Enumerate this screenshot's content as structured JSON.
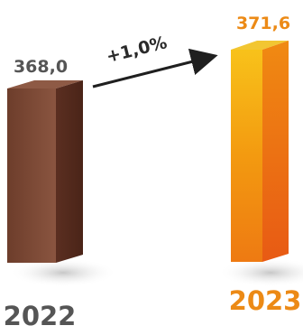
{
  "chart_data": {
    "type": "bar",
    "categories": [
      "2022",
      "2023"
    ],
    "values": [
      368.0,
      371.6
    ],
    "value_labels": [
      "368,0",
      "371,6"
    ],
    "change_label": "+1,0%",
    "title": "",
    "xlabel": "",
    "ylabel": "",
    "legend": "none",
    "grid": false,
    "style": "3d-box",
    "colors": {
      "bar_2022_front": "#7a4632",
      "bar_2022_side": "#5b2f21",
      "bar_2022_top": "#8e5a45",
      "bar_2023_front": "#f39a10",
      "bar_2023_side": "#e06a14",
      "bar_2023_top": "#f2c632",
      "label_2022": "#555555",
      "label_2023": "#ec8a16",
      "arrow": "#1f1f1f"
    }
  }
}
